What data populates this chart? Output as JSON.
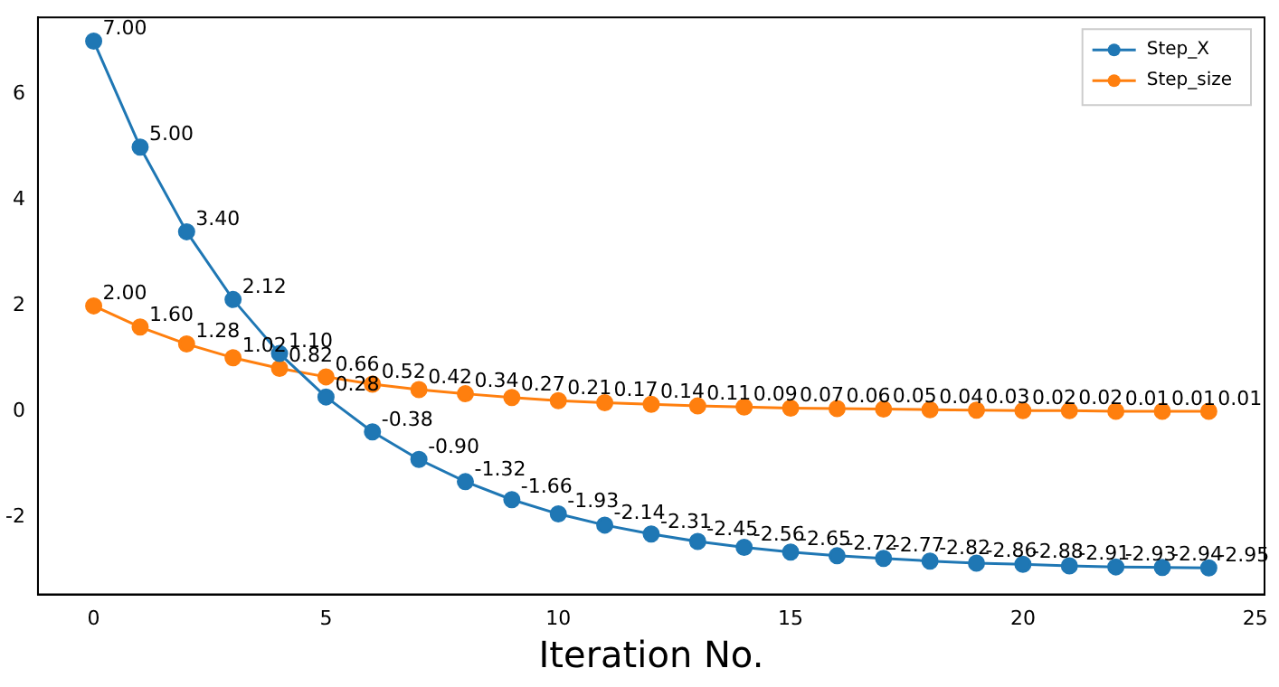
{
  "chart_data": {
    "type": "line",
    "xlabel": "Iteration No.",
    "x": [
      0,
      1,
      2,
      3,
      4,
      5,
      6,
      7,
      8,
      9,
      10,
      11,
      12,
      13,
      14,
      15,
      16,
      17,
      18,
      19,
      20,
      21,
      22,
      23,
      24
    ],
    "series": [
      {
        "name": "Step_X",
        "color": "#1f77b4",
        "values": [
          7.0,
          5.0,
          3.4,
          2.12,
          1.1,
          0.28,
          -0.38,
          -0.9,
          -1.32,
          -1.66,
          -1.93,
          -2.14,
          -2.31,
          -2.45,
          -2.56,
          -2.65,
          -2.72,
          -2.77,
          -2.82,
          -2.86,
          -2.88,
          -2.91,
          -2.93,
          -2.94,
          -2.95
        ],
        "value_labels": [
          "7.00",
          "5.00",
          "3.40",
          "2.12",
          "1.10",
          "0.28",
          "-0.38",
          "-0.90",
          "-1.32",
          "-1.66",
          "-1.93",
          "-2.14",
          "-2.31",
          "-2.45",
          "-2.56",
          "-2.65",
          "-2.72",
          "-2.77",
          "-2.82",
          "-2.86",
          "-2.88",
          "-2.91",
          "-2.93",
          "-2.94",
          "-2.95"
        ]
      },
      {
        "name": "Step_size",
        "color": "#ff7f0e",
        "values": [
          2.0,
          1.6,
          1.28,
          1.02,
          0.82,
          0.66,
          0.52,
          0.42,
          0.34,
          0.27,
          0.21,
          0.17,
          0.14,
          0.11,
          0.09,
          0.07,
          0.06,
          0.05,
          0.04,
          0.03,
          0.02,
          0.02,
          0.01,
          0.01,
          0.01
        ],
        "value_labels": [
          "2.00",
          "1.60",
          "1.28",
          "1.02",
          "0.82",
          "0.66",
          "0.52",
          "0.42",
          "0.34",
          "0.27",
          "0.21",
          "0.17",
          "0.14",
          "0.11",
          "0.09",
          "0.07",
          "0.06",
          "0.05",
          "0.04",
          "0.03",
          "0.02",
          "0.02",
          "0.01",
          "0.01",
          "0.01"
        ]
      }
    ],
    "xlim": [
      -1.2,
      25.2
    ],
    "xticks": [
      0,
      5,
      10,
      15,
      20,
      25
    ],
    "ylim": [
      -3.45,
      7.45
    ],
    "yticks": [
      -2,
      0,
      2,
      4,
      6
    ],
    "grid": false,
    "legend": "top right",
    "marker": "circle",
    "line_style": "solid"
  }
}
